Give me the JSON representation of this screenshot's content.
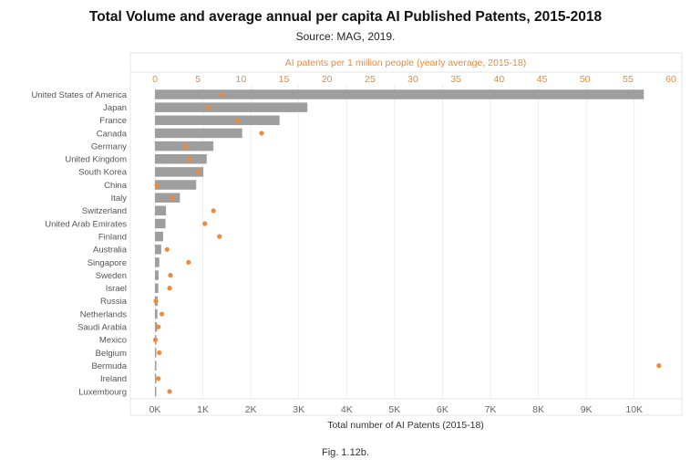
{
  "title": "Total Volume and average annual per capita AI Published Patents, 2015-2018",
  "subtitle": "Source: MAG, 2019.",
  "caption": "Fig. 1.12b.",
  "chart_data": {
    "type": "bar",
    "orientation": "horizontal",
    "categories": [
      "United States of America",
      "Japan",
      "France",
      "Canada",
      "Germany",
      "United Kingdom",
      "South Korea",
      "China",
      "Italy",
      "Switzerland",
      "United Arab Emirates",
      "Finland",
      "Australia",
      "Singapore",
      "Sweden",
      "Israel",
      "Russia",
      "Netherlands",
      "Saudi Arabia",
      "Mexico",
      "Belgium",
      "Bermuda",
      "Ireland",
      "Luxembourg"
    ],
    "series": [
      {
        "name": "Total number of AI Patents (2015-18)",
        "axis": "bottom",
        "color": "#9e9e9e",
        "values": [
          10200,
          3180,
          2600,
          1820,
          1220,
          1080,
          1010,
          860,
          520,
          230,
          220,
          170,
          130,
          90,
          75,
          70,
          55,
          50,
          45,
          10,
          20,
          5,
          15,
          10
        ]
      },
      {
        "name": "AI patents per 1 million people (yearly average, 2015-18)",
        "axis": "top",
        "color": "#ee8a3a",
        "values": [
          7.8,
          6.2,
          9.6,
          12.4,
          3.6,
          4.0,
          5.0,
          0.2,
          2.0,
          6.8,
          5.8,
          7.5,
          1.4,
          3.9,
          1.8,
          1.7,
          0.1,
          0.8,
          0.4,
          0.05,
          0.5,
          58.6,
          0.4,
          1.7
        ]
      }
    ],
    "xlabel": "Total number of AI Patents (2015-18)",
    "x_ticks": [
      "0K",
      "1K",
      "2K",
      "3K",
      "4K",
      "5K",
      "6K",
      "7K",
      "8K",
      "9K",
      "10K"
    ],
    "xlim": [
      0,
      10500
    ],
    "x2label": "AI patents per 1 million people (yearly average, 2015-18)",
    "x2_ticks": [
      "0",
      "5",
      "10",
      "15",
      "20",
      "25",
      "30",
      "35",
      "40",
      "45",
      "50",
      "55",
      "60"
    ],
    "x2lim": [
      0,
      60
    ],
    "grid": true
  }
}
